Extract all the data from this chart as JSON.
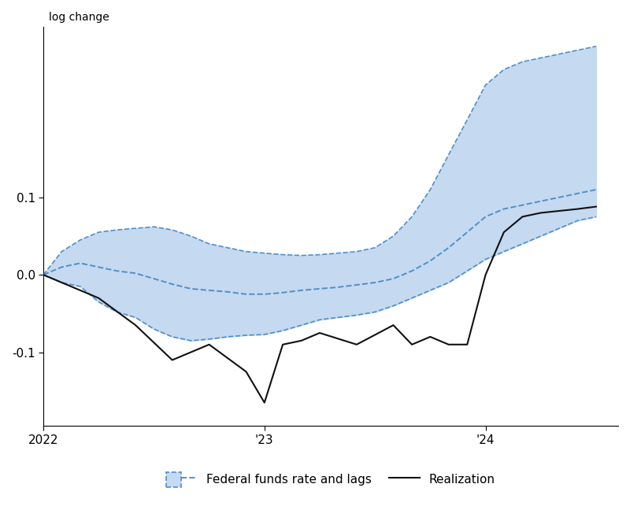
{
  "title_ylabel": "log change",
  "xlim": [
    2022.0,
    2024.6
  ],
  "ylim": [
    -0.195,
    0.32
  ],
  "yticks": [
    -0.1,
    0.0,
    0.1
  ],
  "xtick_positions": [
    2022.0,
    2023.0,
    2024.0
  ],
  "xtick_labels": [
    "2022",
    "'23",
    "'24"
  ],
  "band_color": "#c5d9f0",
  "band_edge_color": "#4f90c8",
  "realization_color": "#111111",
  "x_band": [
    2022.0,
    2022.083,
    2022.167,
    2022.25,
    2022.333,
    2022.417,
    2022.5,
    2022.583,
    2022.667,
    2022.75,
    2022.833,
    2022.917,
    2023.0,
    2023.083,
    2023.167,
    2023.25,
    2023.333,
    2023.417,
    2023.5,
    2023.583,
    2023.667,
    2023.75,
    2023.833,
    2023.917,
    2024.0,
    2024.083,
    2024.167,
    2024.25,
    2024.333,
    2024.417,
    2024.5
  ],
  "y_center": [
    0.0,
    0.01,
    0.015,
    0.01,
    0.005,
    0.002,
    -0.005,
    -0.012,
    -0.018,
    -0.02,
    -0.022,
    -0.025,
    -0.025,
    -0.023,
    -0.02,
    -0.018,
    -0.016,
    -0.013,
    -0.01,
    -0.005,
    0.005,
    0.018,
    0.035,
    0.055,
    0.075,
    0.085,
    0.09,
    0.095,
    0.1,
    0.105,
    0.11
  ],
  "y_upper": [
    0.0,
    0.03,
    0.045,
    0.055,
    0.058,
    0.06,
    0.062,
    0.058,
    0.05,
    0.04,
    0.035,
    0.03,
    0.028,
    0.026,
    0.025,
    0.026,
    0.028,
    0.03,
    0.035,
    0.05,
    0.075,
    0.11,
    0.155,
    0.2,
    0.245,
    0.265,
    0.275,
    0.28,
    0.285,
    0.29,
    0.295
  ],
  "y_lower": [
    0.0,
    -0.01,
    -0.015,
    -0.035,
    -0.048,
    -0.055,
    -0.07,
    -0.08,
    -0.085,
    -0.083,
    -0.08,
    -0.078,
    -0.077,
    -0.072,
    -0.065,
    -0.058,
    -0.055,
    -0.052,
    -0.048,
    -0.04,
    -0.03,
    -0.02,
    -0.01,
    0.005,
    0.02,
    0.03,
    0.04,
    0.05,
    0.06,
    0.07,
    0.075
  ],
  "x_real": [
    2022.0,
    2022.25,
    2022.417,
    2022.583,
    2022.75,
    2022.917,
    2023.0,
    2023.083,
    2023.167,
    2023.25,
    2023.417,
    2023.583,
    2023.667,
    2023.75,
    2023.833,
    2023.917,
    2024.0,
    2024.083,
    2024.167,
    2024.25,
    2024.417,
    2024.5
  ],
  "y_real": [
    0.0,
    -0.03,
    -0.065,
    -0.11,
    -0.09,
    -0.125,
    -0.165,
    -0.09,
    -0.085,
    -0.075,
    -0.09,
    -0.065,
    -0.09,
    -0.08,
    -0.09,
    -0.09,
    0.0,
    0.055,
    0.075,
    0.08,
    0.085,
    0.088
  ],
  "legend_box_color": "#c5d9f0",
  "legend_box_edge_color": "#4f90c8",
  "legend_line_color": "#4f90c8",
  "legend_real_color": "#111111",
  "figsize": [
    8.0,
    6.76
  ],
  "dpi": 100
}
